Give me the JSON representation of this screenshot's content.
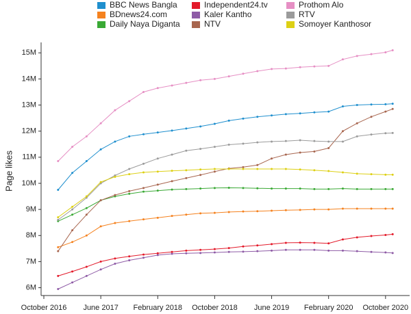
{
  "chart_data": {
    "type": "line",
    "y_label": "Page likes",
    "x": [
      "2016-12",
      "2017-02",
      "2017-04",
      "2017-06",
      "2017-08",
      "2017-10",
      "2017-12",
      "2018-02",
      "2018-04",
      "2018-06",
      "2018-08",
      "2018-10",
      "2018-12",
      "2019-02",
      "2019-04",
      "2019-06",
      "2019-08",
      "2019-10",
      "2019-12",
      "2020-02",
      "2020-04",
      "2020-06",
      "2020-08",
      "2020-10",
      "2020-11"
    ],
    "xlim": [
      "2016-10",
      "2021-01"
    ],
    "xticks": [
      {
        "value": "2016-10",
        "label": "October 2016"
      },
      {
        "value": "2017-06",
        "label": "June 2017"
      },
      {
        "value": "2018-02",
        "label": "February 2018"
      },
      {
        "value": "2018-10",
        "label": "October 2018"
      },
      {
        "value": "2019-06",
        "label": "June 2019"
      },
      {
        "value": "2020-02",
        "label": "February 2020"
      },
      {
        "value": "2020-10",
        "label": "October 2020"
      }
    ],
    "ylim": [
      5.7,
      15.4
    ],
    "yticks": [
      {
        "value": 6,
        "label": "6M"
      },
      {
        "value": 7,
        "label": "7M"
      },
      {
        "value": 8,
        "label": "8M"
      },
      {
        "value": 9,
        "label": "9M"
      },
      {
        "value": 10,
        "label": "10M"
      },
      {
        "value": 11,
        "label": "11M"
      },
      {
        "value": 12,
        "label": "12M"
      },
      {
        "value": 13,
        "label": "13M"
      },
      {
        "value": 14,
        "label": "14M"
      },
      {
        "value": 15,
        "label": "15M"
      }
    ],
    "series": [
      {
        "name": "BBC News Bangla",
        "color": "#1f8fce",
        "values": [
          9.75,
          10.4,
          10.85,
          11.3,
          11.6,
          11.8,
          11.88,
          11.95,
          12.02,
          12.1,
          12.18,
          12.28,
          12.4,
          12.48,
          12.55,
          12.6,
          12.65,
          12.68,
          12.72,
          12.75,
          12.95,
          13.0,
          13.02,
          13.03,
          13.05
        ]
      },
      {
        "name": "BDnews24.com",
        "color": "#f5821f",
        "values": [
          7.55,
          7.75,
          8.0,
          8.35,
          8.48,
          8.55,
          8.62,
          8.68,
          8.75,
          8.8,
          8.85,
          8.87,
          8.9,
          8.92,
          8.93,
          8.95,
          8.97,
          8.98,
          9.0,
          9.0,
          9.03,
          9.03,
          9.03,
          9.03,
          9.03
        ]
      },
      {
        "name": "Daily Naya Diganta",
        "color": "#3aa935",
        "values": [
          8.55,
          8.8,
          9.05,
          9.35,
          9.5,
          9.6,
          9.68,
          9.72,
          9.76,
          9.78,
          9.8,
          9.82,
          9.83,
          9.82,
          9.81,
          9.8,
          9.8,
          9.8,
          9.78,
          9.78,
          9.8,
          9.78,
          9.78,
          9.78,
          9.78
        ]
      },
      {
        "name": "Independent24.tv",
        "color": "#e31a2a",
        "values": [
          6.45,
          6.62,
          6.8,
          7.0,
          7.12,
          7.2,
          7.27,
          7.32,
          7.37,
          7.42,
          7.45,
          7.48,
          7.52,
          7.58,
          7.62,
          7.67,
          7.72,
          7.73,
          7.72,
          7.7,
          7.85,
          7.93,
          7.98,
          8.02,
          8.05
        ]
      },
      {
        "name": "Kaler Kantho",
        "color": "#8e5ba6",
        "values": [
          5.95,
          6.2,
          6.45,
          6.7,
          6.92,
          7.05,
          7.15,
          7.25,
          7.3,
          7.32,
          7.33,
          7.35,
          7.37,
          7.38,
          7.4,
          7.42,
          7.45,
          7.45,
          7.45,
          7.42,
          7.42,
          7.4,
          7.37,
          7.35,
          7.33
        ]
      },
      {
        "name": "NTV",
        "color": "#a8664f",
        "values": [
          7.4,
          8.2,
          8.8,
          9.35,
          9.55,
          9.7,
          9.82,
          9.95,
          10.08,
          10.2,
          10.32,
          10.45,
          10.57,
          10.62,
          10.7,
          10.95,
          11.1,
          11.18,
          11.22,
          11.35,
          12.0,
          12.3,
          12.55,
          12.75,
          12.85
        ]
      },
      {
        "name": "Prothom Alo",
        "color": "#e68fc4",
        "values": [
          10.85,
          11.4,
          11.8,
          12.3,
          12.8,
          13.15,
          13.5,
          13.65,
          13.75,
          13.85,
          13.95,
          14.0,
          14.1,
          14.2,
          14.3,
          14.38,
          14.4,
          14.45,
          14.48,
          14.5,
          14.75,
          14.88,
          14.95,
          15.02,
          15.1
        ]
      },
      {
        "name": "RTV",
        "color": "#9b9b9b",
        "values": [
          8.6,
          9.0,
          9.45,
          10.0,
          10.3,
          10.55,
          10.75,
          10.95,
          11.1,
          11.25,
          11.32,
          11.4,
          11.48,
          11.52,
          11.57,
          11.6,
          11.62,
          11.65,
          11.62,
          11.6,
          11.6,
          11.8,
          11.87,
          11.92,
          11.93
        ]
      },
      {
        "name": "Somoyer Kanthosor",
        "color": "#ddd014",
        "values": [
          8.7,
          9.1,
          9.5,
          10.05,
          10.25,
          10.35,
          10.42,
          10.45,
          10.48,
          10.5,
          10.53,
          10.55,
          10.55,
          10.55,
          10.55,
          10.55,
          10.55,
          10.53,
          10.5,
          10.47,
          10.42,
          10.37,
          10.35,
          10.33,
          10.33
        ]
      }
    ]
  }
}
